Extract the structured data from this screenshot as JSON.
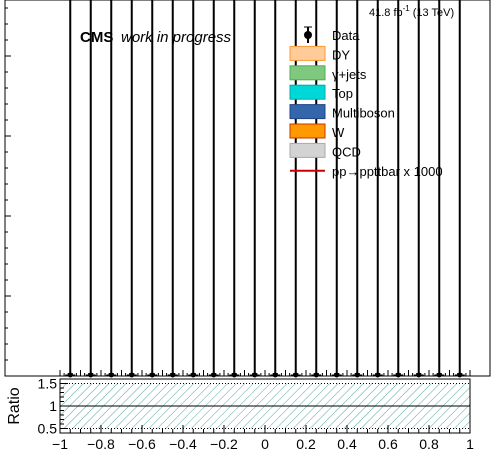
{
  "header": {
    "cms": "CMS",
    "subtitle": "work in progress",
    "lumi": "41.8 fb",
    "lumi_sup": "-1",
    "energy": "(13 TeV)"
  },
  "chart_data": [
    {
      "type": "bar",
      "role": "main-histogram",
      "x_range": [
        -1,
        1
      ],
      "n_bins": 20,
      "legend": [
        {
          "label": "Data",
          "style": "marker",
          "color": "#000000"
        },
        {
          "label": "DY",
          "style": "fill",
          "color": "#FFCC99",
          "edge": "#FF9933"
        },
        {
          "label": "γ+jets",
          "style": "fill",
          "color": "#7FC97F",
          "edge": "#4CAF50"
        },
        {
          "label": "Top",
          "style": "fill",
          "color": "#00D8D8",
          "edge": "#00AAAA"
        },
        {
          "label": "Multiboson",
          "style": "fill",
          "color": "#3366AA",
          "edge": "#224488"
        },
        {
          "label": "W",
          "style": "fill",
          "color": "#FF9900",
          "edge": "#CC3300"
        },
        {
          "label": "QCD",
          "style": "fill",
          "color": "#D3D3D3",
          "edge": "#AAAAAA"
        },
        {
          "label": "pp→ppttbar x 1000",
          "style": "line",
          "color": "#CC0000"
        }
      ],
      "legend_position": "top-right",
      "data_points": {
        "x": [
          -0.95,
          -0.85,
          -0.75,
          -0.65,
          -0.55,
          -0.45,
          -0.35,
          -0.25,
          -0.15,
          -0.05,
          0.05,
          0.15,
          0.25,
          0.35,
          0.45,
          0.55,
          0.65,
          0.75,
          0.85,
          0.95
        ],
        "y": [
          0,
          0,
          0,
          0,
          0,
          0,
          0,
          0,
          0,
          0,
          0,
          0,
          0,
          0,
          0,
          0,
          0,
          0,
          0,
          0
        ],
        "error_bars": "spanning full y-range"
      }
    },
    {
      "type": "line",
      "role": "ratio-panel",
      "ylabel": "Ratio",
      "ylim": [
        0.4,
        1.6
      ],
      "y_ticks": [
        "0.5",
        "1",
        "1.5"
      ],
      "x_ticks": [
        "−1",
        "−0.8",
        "−0.6",
        "−0.4",
        "−0.2",
        "0",
        "0.2",
        "0.4",
        "0.6",
        "0.8",
        "1"
      ],
      "x_tick_values": [
        -1,
        -0.8,
        -0.6,
        -0.4,
        -0.2,
        0,
        0.2,
        0.4,
        0.6,
        0.8,
        1
      ],
      "y_tick_values": [
        0.5,
        1,
        1.5
      ],
      "reference_line": 1,
      "uncertainty_band": [
        0.5,
        1.5
      ],
      "dotted_lines": [
        0.5,
        1.5
      ]
    }
  ]
}
